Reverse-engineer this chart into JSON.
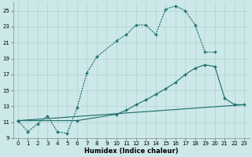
{
  "xlabel": "Humidex (Indice chaleur)",
  "bg_color": "#cce8e8",
  "line_color": "#1a6b6b",
  "grid_color": "#b8d4d4",
  "xlim": [
    -0.5,
    23.5
  ],
  "ylim": [
    9,
    26
  ],
  "yticks": [
    9,
    11,
    13,
    15,
    17,
    19,
    21,
    23,
    25
  ],
  "xticks": [
    0,
    1,
    2,
    3,
    4,
    5,
    6,
    7,
    8,
    9,
    10,
    11,
    12,
    13,
    14,
    15,
    16,
    17,
    18,
    19,
    20,
    21,
    22,
    23
  ],
  "curves": {
    "curve_upper": {
      "x": [
        0,
        1,
        2,
        3,
        4,
        5,
        6,
        7,
        8,
        10,
        11,
        12,
        13,
        14,
        15,
        16,
        17,
        18,
        19,
        20
      ],
      "y": [
        11.2,
        9.8,
        10.8,
        11.8,
        9.8,
        9.6,
        12.8,
        17.2,
        19.2,
        21.2,
        22.0,
        23.2,
        23.2,
        22.0,
        25.2,
        25.6,
        25.0,
        23.2,
        19.8,
        19.8
      ]
    },
    "curve_mid": {
      "x": [
        0,
        6,
        10,
        11,
        12,
        13,
        14,
        15,
        16,
        17,
        18,
        19,
        20,
        21,
        22,
        23
      ],
      "y": [
        11.2,
        11.2,
        12.0,
        12.5,
        13.2,
        13.8,
        14.5,
        15.2,
        16.0,
        17.0,
        17.8,
        18.2,
        18.0,
        14.0,
        13.2,
        13.2
      ]
    },
    "curve_low": {
      "x": [
        0,
        23
      ],
      "y": [
        11.2,
        13.2
      ]
    }
  }
}
